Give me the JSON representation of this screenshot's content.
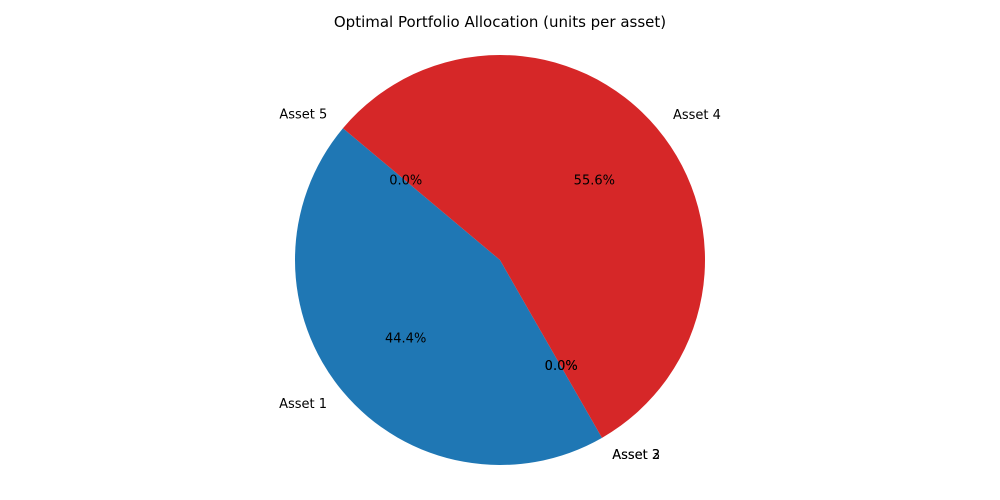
{
  "chart_data": {
    "type": "pie",
    "title": "Optimal Portfolio Allocation (units per asset)",
    "categories": [
      "Asset 1",
      "Asset 2",
      "Asset 3",
      "Asset 4",
      "Asset 5"
    ],
    "values": [
      44.4,
      0.0,
      0.0,
      55.6,
      0.0
    ],
    "value_labels": [
      "44.4%",
      "0.0%",
      "0.0%",
      "55.6%",
      "0.0%"
    ],
    "colors": [
      "#1f77b4",
      "#ff7f0e",
      "#2ca02c",
      "#d62728",
      "#9467bd"
    ],
    "start_angle_deg": 140,
    "direction": "counterclockwise",
    "legend": "none"
  }
}
